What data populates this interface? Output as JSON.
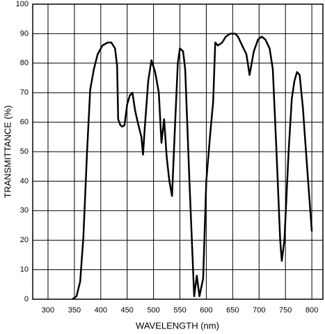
{
  "chart_data": {
    "type": "line",
    "x_label": "WAVELENGTH (nm)",
    "y_label": "TRANSMITTANCE (%)",
    "x": [
      346,
      354,
      361,
      367,
      374,
      380,
      387,
      394,
      403,
      413,
      420,
      427,
      431,
      433,
      437,
      441,
      445,
      450,
      455,
      460,
      465,
      470,
      477,
      480,
      483,
      490,
      496,
      503,
      510,
      515,
      520,
      525,
      530,
      535,
      541,
      546,
      550,
      556,
      560,
      568,
      577,
      582,
      587,
      594,
      600,
      607,
      613,
      617,
      622,
      630,
      637,
      645,
      655,
      660,
      668,
      676,
      682,
      690,
      698,
      705,
      712,
      720,
      726,
      733,
      740,
      743,
      748,
      756,
      762,
      767,
      772,
      777,
      783,
      789,
      795,
      800
    ],
    "values": [
      0,
      1,
      6,
      21,
      50,
      71,
      78,
      83,
      86,
      87,
      87,
      85,
      79,
      61,
      59,
      58.5,
      59,
      66,
      69,
      70,
      64,
      60,
      55,
      49,
      57,
      74,
      81,
      77,
      70,
      53,
      61,
      48,
      40,
      35,
      60,
      80,
      85,
      84,
      78,
      40,
      1,
      8,
      1,
      7,
      40,
      55,
      67,
      87,
      86,
      87,
      89,
      90,
      90,
      89,
      86,
      83,
      76,
      84,
      88,
      89,
      88,
      85,
      78,
      50,
      20,
      13,
      20,
      50,
      68,
      74,
      77,
      76,
      65,
      50,
      35,
      23
    ],
    "color": "#000000",
    "xlim": [
      271,
      821
    ],
    "xticks": [
      300,
      350,
      400,
      450,
      500,
      550,
      600,
      650,
      700,
      750,
      800
    ],
    "ylim": [
      0,
      100
    ],
    "yticks": [
      0,
      10,
      20,
      30,
      40,
      50,
      60,
      70,
      80,
      90,
      100
    ],
    "grid": true
  }
}
